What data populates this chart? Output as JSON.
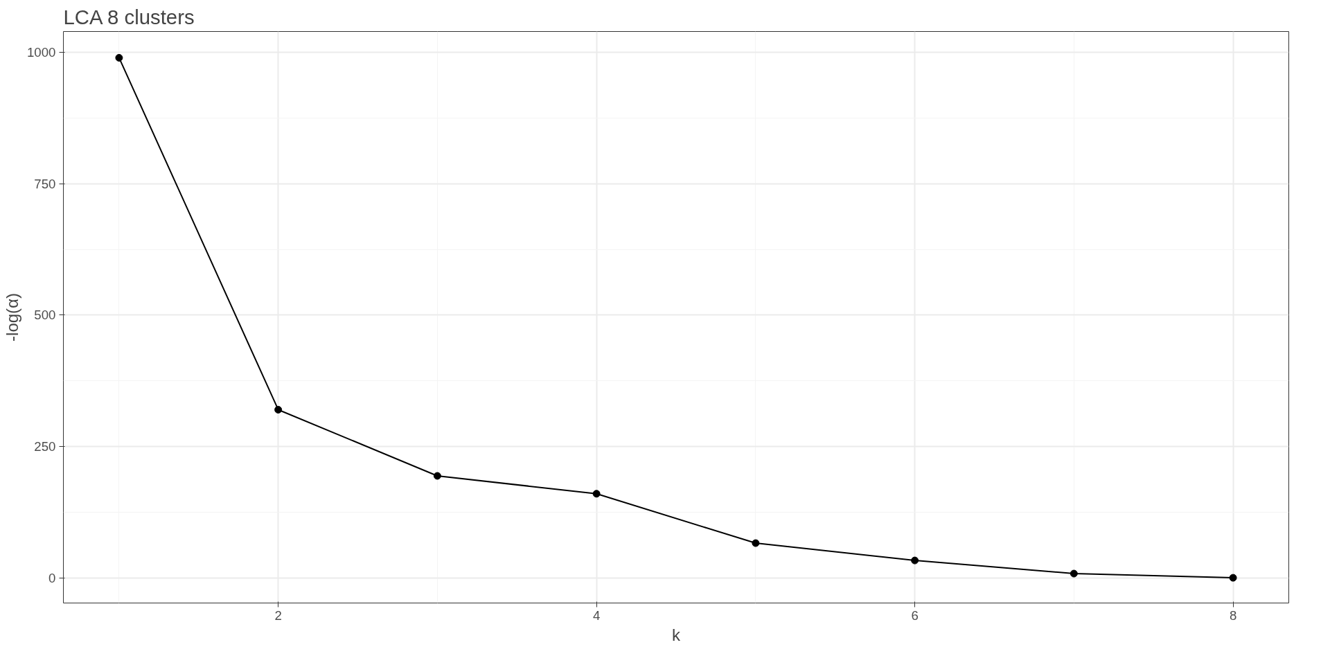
{
  "chart_data": {
    "type": "line",
    "title": "LCA 8 clusters",
    "xlabel": "k",
    "ylabel": "-log(α)",
    "x": [
      1,
      2,
      3,
      4,
      5,
      6,
      7,
      8
    ],
    "series": [
      {
        "color": "#000000",
        "values": [
          990,
          320,
          194,
          160,
          66,
          33,
          8,
          0
        ]
      }
    ],
    "xlim": [
      0.65,
      8.35
    ],
    "xticks": [
      2,
      4,
      6,
      8
    ],
    "ylim": [
      -48,
      1040
    ],
    "yticks": [
      0,
      250,
      500,
      750,
      1000
    ],
    "grid": true,
    "marker": "circle",
    "line_style": "solid"
  }
}
